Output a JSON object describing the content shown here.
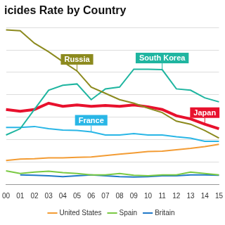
{
  "chart_data": {
    "type": "line",
    "title": "icides Rate by Country",
    "categories": [
      "00",
      "01",
      "02",
      "03",
      "04",
      "05",
      "06",
      "07",
      "08",
      "09",
      "10",
      "11",
      "12",
      "13",
      "14",
      "15"
    ],
    "series": [
      {
        "name": "Russia",
        "color": "#8c8a1e",
        "values": [
          39.5,
          39.3,
          36.5,
          34.6,
          32.4,
          30.3,
          26.7,
          25.3,
          23.9,
          23.1,
          22.0,
          21.0,
          19.1,
          18.4,
          17.0,
          15.3
        ]
      },
      {
        "name": "South Korea",
        "color": "#1fb5a0",
        "values": [
          16.0,
          17.4,
          21.7,
          26.0,
          27.1,
          27.4,
          23.9,
          26.3,
          26.7,
          30.7,
          30.7,
          30.6,
          26.3,
          26.0,
          24.3,
          23.4
        ]
      },
      {
        "name": "France",
        "color": "#29b6e6",
        "values": [
          17.7,
          17.7,
          17.9,
          17.4,
          17.1,
          17.0,
          16.7,
          16.0,
          16.0,
          16.3,
          16.0,
          16.0,
          15.6,
          15.3,
          14.6,
          14.6
        ]
      },
      {
        "name": "Japan",
        "color": "#e8112d",
        "line_style": "thick",
        "values": [
          21.7,
          21.3,
          21.7,
          23.1,
          22.4,
          22.7,
          22.4,
          22.6,
          22.4,
          22.7,
          22.3,
          21.7,
          20.3,
          19.6,
          18.4,
          17.4
        ]
      },
      {
        "name": "United States",
        "color": "#f39c34",
        "values": [
          10.3,
          10.6,
          10.7,
          10.9,
          10.9,
          11.0,
          11.1,
          11.4,
          11.7,
          12.0,
          12.3,
          12.4,
          12.7,
          13.0,
          13.4,
          13.9
        ]
      },
      {
        "name": "Spain",
        "color": "#7ac943",
        "values": [
          8.0,
          7.4,
          7.7,
          7.9,
          7.6,
          7.4,
          7.1,
          7.1,
          7.4,
          7.0,
          6.9,
          7.1,
          7.1,
          7.7,
          7.4,
          7.1
        ]
      },
      {
        "name": "Britain",
        "color": "#1f78c8",
        "values": [
          null,
          7.1,
          7.0,
          6.9,
          6.7,
          6.9,
          7.1,
          6.9,
          6.7,
          6.6,
          6.7,
          6.9,
          6.9,
          7.1,
          7.1,
          7.0
        ]
      }
    ],
    "annotations": [
      {
        "series": "Russia",
        "x": "05"
      },
      {
        "series": "South Korea",
        "x": "11"
      },
      {
        "series": "France",
        "x": "06"
      },
      {
        "series": "Japan",
        "x": "14"
      }
    ],
    "ylim": [
      5,
      40
    ],
    "yticks": [
      5,
      10,
      15,
      20,
      25,
      30,
      35,
      40
    ],
    "tick_labels": "x",
    "grid": true,
    "legend": "bottom"
  }
}
